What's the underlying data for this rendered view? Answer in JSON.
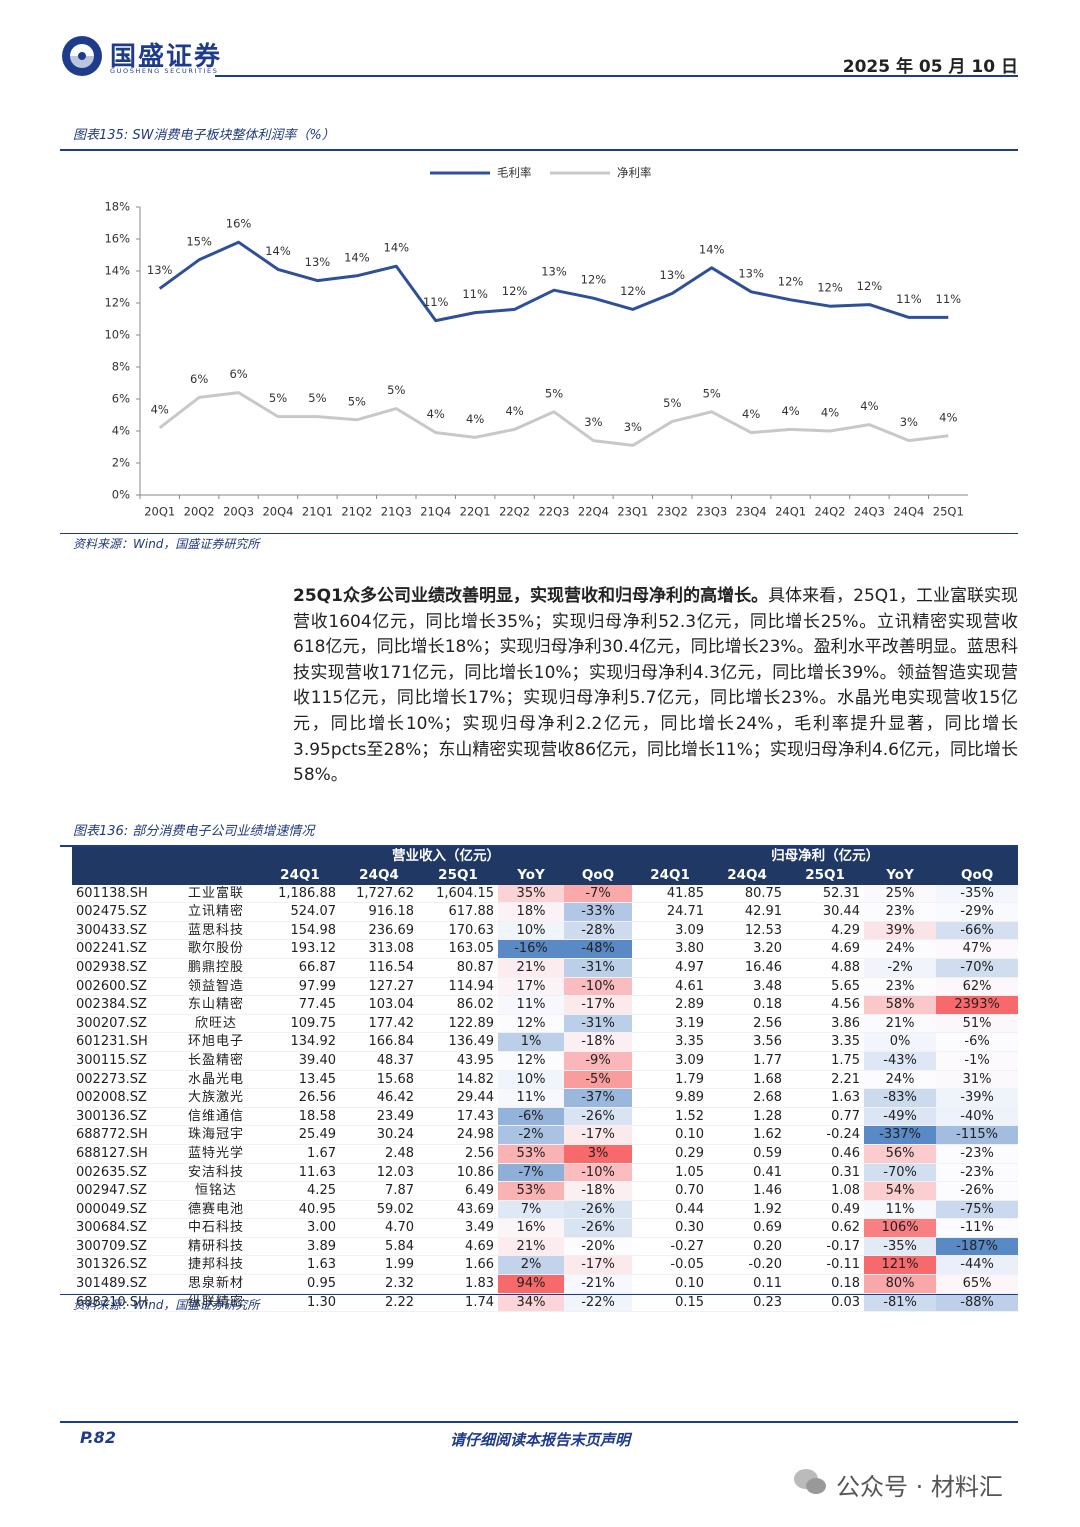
{
  "header": {
    "logo": "国盛证券",
    "logo_en": "GUOSHENG SECURITIES",
    "date": "2025 年 05 月 10 日"
  },
  "figure1": {
    "title": "图表135: SW消费电子板块整体利润率（%）",
    "source": "资料来源：Wind，国盛证券研究所"
  },
  "chart_data": {
    "type": "line",
    "categories": [
      "20Q1",
      "20Q2",
      "20Q3",
      "20Q4",
      "21Q1",
      "21Q2",
      "21Q3",
      "21Q4",
      "22Q1",
      "22Q2",
      "22Q3",
      "22Q4",
      "23Q1",
      "23Q2",
      "23Q3",
      "23Q4",
      "24Q1",
      "24Q2",
      "24Q3",
      "24Q4",
      "25Q1"
    ],
    "series": [
      {
        "name": "毛利率",
        "color": "#2e4f9a",
        "values": [
          12.9,
          14.7,
          15.8,
          14.1,
          13.4,
          13.7,
          14.3,
          10.9,
          11.4,
          11.6,
          12.8,
          12.3,
          11.6,
          12.6,
          14.2,
          12.7,
          12.2,
          11.8,
          11.9,
          11.1,
          11.1
        ],
        "value_labels": [
          "13%",
          "15%",
          "16%",
          "14%",
          "13%",
          "14%",
          "14%",
          "11%",
          "11%",
          "12%",
          "13%",
          "12%",
          "12%",
          "13%",
          "14%",
          "13%",
          "12%",
          "12%",
          "12%",
          "11%",
          "11%"
        ]
      },
      {
        "name": "净利率",
        "color": "#c8c8c8",
        "values": [
          4.2,
          6.1,
          6.4,
          4.9,
          4.9,
          4.7,
          5.4,
          3.9,
          3.6,
          4.1,
          5.2,
          3.4,
          3.1,
          4.6,
          5.2,
          3.9,
          4.1,
          4.0,
          4.4,
          3.4,
          3.7
        ],
        "value_labels": [
          "4%",
          "6%",
          "6%",
          "5%",
          "5%",
          "5%",
          "5%",
          "4%",
          "4%",
          "4%",
          "5%",
          "3%",
          "3%",
          "5%",
          "5%",
          "4%",
          "4%",
          "4%",
          "4%",
          "3%",
          "4%"
        ]
      }
    ],
    "ylim": [
      0,
      18
    ],
    "yticks": [
      {
        "value": 0,
        "label": "0%"
      },
      {
        "value": 2,
        "label": "2%"
      },
      {
        "value": 4,
        "label": "4%"
      },
      {
        "value": 6,
        "label": "6%"
      },
      {
        "value": 8,
        "label": "8%"
      },
      {
        "value": 10,
        "label": "10%"
      },
      {
        "value": 12,
        "label": "12%"
      },
      {
        "value": 14,
        "label": "14%"
      },
      {
        "value": 16,
        "label": "16%"
      },
      {
        "value": 18,
        "label": "18%"
      }
    ],
    "legend": "top"
  },
  "body": {
    "lead": "25Q1众多公司业绩改善明显，实现营收和归母净利的高增长。",
    "text": "具体来看，25Q1，工业富联实现营收1604亿元，同比增长35%；实现归母净利52.3亿元，同比增长25%。立讯精密实现营收618亿元，同比增长18%；实现归母净利30.4亿元，同比增长23%。盈利水平改善明显。蓝思科技实现营收171亿元，同比增长10%；实现归母净利4.3亿元，同比增长39%。领益智造实现营收115亿元，同比增长17%；实现归母净利5.7亿元，同比增长23%。水晶光电实现营收15亿元，同比增长10%；实现归母净利2.2亿元，同比增长24%，毛利率提升显著，同比增长3.95pcts至28%；东山精密实现营收86亿元，同比增长11%；实现归母净利4.6亿元，同比增长58%。"
  },
  "figure2": {
    "title": "图表136: 部分消费电子公司业绩增速情况",
    "source": "资料来源：Wind，国盛证券研究所"
  },
  "table": {
    "group_headers": [
      "营业收入（亿元）",
      "归母净利（亿元）"
    ],
    "columns": [
      "24Q1",
      "24Q4",
      "25Q1",
      "YoY",
      "QoQ",
      "24Q1",
      "24Q4",
      "25Q1",
      "YoY",
      "QoQ"
    ],
    "rows": [
      [
        "601138.SH",
        "工业富联",
        "1,186.88",
        "1,727.62",
        "1,604.15",
        "35%",
        "-7%",
        "41.85",
        "80.75",
        "52.31",
        "25%",
        "-35%"
      ],
      [
        "002475.SZ",
        "立讯精密",
        "524.07",
        "916.18",
        "617.88",
        "18%",
        "-33%",
        "24.71",
        "42.91",
        "30.44",
        "23%",
        "-29%"
      ],
      [
        "300433.SZ",
        "蓝思科技",
        "154.98",
        "236.69",
        "170.63",
        "10%",
        "-28%",
        "3.09",
        "12.53",
        "4.29",
        "39%",
        "-66%"
      ],
      [
        "002241.SZ",
        "歌尔股份",
        "193.12",
        "313.08",
        "163.05",
        "-16%",
        "-48%",
        "3.80",
        "3.20",
        "4.69",
        "24%",
        "47%"
      ],
      [
        "002938.SZ",
        "鹏鼎控股",
        "66.87",
        "116.54",
        "80.87",
        "21%",
        "-31%",
        "4.97",
        "16.46",
        "4.88",
        "-2%",
        "-70%"
      ],
      [
        "002600.SZ",
        "领益智造",
        "97.99",
        "127.27",
        "114.94",
        "17%",
        "-10%",
        "4.61",
        "3.48",
        "5.65",
        "23%",
        "62%"
      ],
      [
        "002384.SZ",
        "东山精密",
        "77.45",
        "103.04",
        "86.02",
        "11%",
        "-17%",
        "2.89",
        "0.18",
        "4.56",
        "58%",
        "2393%"
      ],
      [
        "300207.SZ",
        "欣旺达",
        "109.75",
        "177.42",
        "122.89",
        "12%",
        "-31%",
        "3.19",
        "2.56",
        "3.86",
        "21%",
        "51%"
      ],
      [
        "601231.SH",
        "环旭电子",
        "134.92",
        "166.84",
        "136.49",
        "1%",
        "-18%",
        "3.35",
        "3.56",
        "3.35",
        "0%",
        "-6%"
      ],
      [
        "300115.SZ",
        "长盈精密",
        "39.40",
        "48.37",
        "43.95",
        "12%",
        "-9%",
        "3.09",
        "1.77",
        "1.75",
        "-43%",
        "-1%"
      ],
      [
        "002273.SZ",
        "水晶光电",
        "13.45",
        "15.68",
        "14.82",
        "10%",
        "-5%",
        "1.79",
        "1.68",
        "2.21",
        "24%",
        "31%"
      ],
      [
        "002008.SZ",
        "大族激光",
        "26.56",
        "46.42",
        "29.44",
        "11%",
        "-37%",
        "9.89",
        "2.68",
        "1.63",
        "-83%",
        "-39%"
      ],
      [
        "300136.SZ",
        "信维通信",
        "18.58",
        "23.49",
        "17.43",
        "-6%",
        "-26%",
        "1.52",
        "1.28",
        "0.77",
        "-49%",
        "-40%"
      ],
      [
        "688772.SH",
        "珠海冠宇",
        "25.49",
        "30.24",
        "24.98",
        "-2%",
        "-17%",
        "0.10",
        "1.62",
        "-0.24",
        "-337%",
        "-115%"
      ],
      [
        "688127.SH",
        "蓝特光学",
        "1.67",
        "2.48",
        "2.56",
        "53%",
        "3%",
        "0.29",
        "0.59",
        "0.46",
        "56%",
        "-23%"
      ],
      [
        "002635.SZ",
        "安洁科技",
        "11.63",
        "12.03",
        "10.86",
        "-7%",
        "-10%",
        "1.05",
        "0.41",
        "0.31",
        "-70%",
        "-23%"
      ],
      [
        "002947.SZ",
        "恒铭达",
        "4.25",
        "7.87",
        "6.49",
        "53%",
        "-18%",
        "0.70",
        "1.46",
        "1.08",
        "54%",
        "-26%"
      ],
      [
        "000049.SZ",
        "德赛电池",
        "40.95",
        "59.02",
        "43.69",
        "7%",
        "-26%",
        "0.44",
        "1.92",
        "0.49",
        "11%",
        "-75%"
      ],
      [
        "300684.SZ",
        "中石科技",
        "3.00",
        "4.70",
        "3.49",
        "16%",
        "-26%",
        "0.30",
        "0.69",
        "0.62",
        "106%",
        "-11%"
      ],
      [
        "300709.SZ",
        "精研科技",
        "3.89",
        "5.84",
        "4.69",
        "21%",
        "-20%",
        "-0.27",
        "0.20",
        "-0.17",
        "-35%",
        "-187%"
      ],
      [
        "301326.SZ",
        "捷邦科技",
        "1.63",
        "1.99",
        "1.66",
        "2%",
        "-17%",
        "-0.05",
        "-0.20",
        "-0.11",
        "121%",
        "-44%"
      ],
      [
        "301489.SZ",
        "思泉新材",
        "0.95",
        "2.32",
        "1.83",
        "94%",
        "-21%",
        "0.10",
        "0.11",
        "0.18",
        "80%",
        "65%"
      ],
      [
        "688210.SH",
        "纵联精密",
        "1.30",
        "2.22",
        "1.74",
        "34%",
        "-22%",
        "0.15",
        "0.23",
        "0.03",
        "-81%",
        "-88%"
      ]
    ]
  },
  "footer": {
    "page": "P.82",
    "notice": "请仔细阅读本报告末页声明",
    "watermark": "公众号 · 材料汇"
  }
}
